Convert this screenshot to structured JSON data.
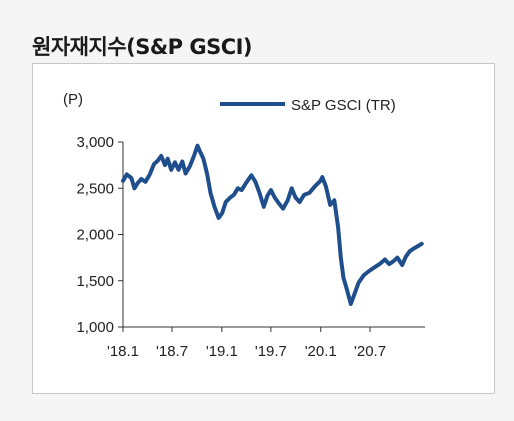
{
  "title": "원자재지수(S&P GSCI)",
  "chart_data": {
    "type": "line",
    "unit_label": "(P)",
    "series": [
      {
        "name": "S&P GSCI (TR)",
        "color": "#1f4e8c",
        "values": [
          [
            "2018-01-01",
            2580
          ],
          [
            "2018-01-15",
            2650
          ],
          [
            "2018-02-01",
            2610
          ],
          [
            "2018-02-12",
            2500
          ],
          [
            "2018-02-25",
            2560
          ],
          [
            "2018-03-10",
            2600
          ],
          [
            "2018-03-25",
            2570
          ],
          [
            "2018-04-10",
            2650
          ],
          [
            "2018-04-25",
            2760
          ],
          [
            "2018-05-10",
            2800
          ],
          [
            "2018-05-22",
            2850
          ],
          [
            "2018-06-05",
            2750
          ],
          [
            "2018-06-15",
            2820
          ],
          [
            "2018-06-28",
            2700
          ],
          [
            "2018-07-12",
            2780
          ],
          [
            "2018-07-25",
            2700
          ],
          [
            "2018-08-08",
            2790
          ],
          [
            "2018-08-20",
            2660
          ],
          [
            "2018-09-05",
            2740
          ],
          [
            "2018-09-20",
            2850
          ],
          [
            "2018-10-03",
            2960
          ],
          [
            "2018-10-12",
            2900
          ],
          [
            "2018-10-25",
            2820
          ],
          [
            "2018-11-08",
            2650
          ],
          [
            "2018-11-20",
            2450
          ],
          [
            "2018-12-05",
            2300
          ],
          [
            "2018-12-20",
            2180
          ],
          [
            "2019-01-02",
            2230
          ],
          [
            "2019-01-15",
            2350
          ],
          [
            "2019-02-01",
            2400
          ],
          [
            "2019-02-15",
            2430
          ],
          [
            "2019-03-01",
            2500
          ],
          [
            "2019-03-15",
            2480
          ],
          [
            "2019-04-01",
            2560
          ],
          [
            "2019-04-20",
            2640
          ],
          [
            "2019-05-05",
            2570
          ],
          [
            "2019-05-20",
            2450
          ],
          [
            "2019-06-05",
            2300
          ],
          [
            "2019-06-18",
            2420
          ],
          [
            "2019-07-01",
            2480
          ],
          [
            "2019-07-15",
            2400
          ],
          [
            "2019-08-01",
            2330
          ],
          [
            "2019-08-15",
            2280
          ],
          [
            "2019-09-01",
            2370
          ],
          [
            "2019-09-16",
            2500
          ],
          [
            "2019-09-30",
            2400
          ],
          [
            "2019-10-15",
            2350
          ],
          [
            "2019-11-01",
            2430
          ],
          [
            "2019-11-20",
            2450
          ],
          [
            "2019-12-10",
            2520
          ],
          [
            "2019-12-31",
            2580
          ],
          [
            "2020-01-07",
            2620
          ],
          [
            "2020-01-20",
            2520
          ],
          [
            "2020-02-05",
            2320
          ],
          [
            "2020-02-20",
            2370
          ],
          [
            "2020-03-05",
            2080
          ],
          [
            "2020-03-15",
            1750
          ],
          [
            "2020-03-25",
            1530
          ],
          [
            "2020-04-05",
            1420
          ],
          [
            "2020-04-21",
            1250
          ],
          [
            "2020-05-05",
            1360
          ],
          [
            "2020-05-20",
            1480
          ],
          [
            "2020-06-08",
            1560
          ],
          [
            "2020-06-25",
            1600
          ],
          [
            "2020-07-15",
            1640
          ],
          [
            "2020-08-05",
            1680
          ],
          [
            "2020-08-25",
            1730
          ],
          [
            "2020-09-10",
            1680
          ],
          [
            "2020-09-25",
            1710
          ],
          [
            "2020-10-10",
            1750
          ],
          [
            "2020-10-28",
            1670
          ],
          [
            "2020-11-10",
            1760
          ],
          [
            "2020-11-25",
            1820
          ],
          [
            "2020-12-10",
            1850
          ],
          [
            "2020-12-28",
            1880
          ],
          [
            "2021-01-08",
            1900
          ]
        ]
      }
    ],
    "xlim": [
      "2018-01-01",
      "2021-01-20"
    ],
    "ylim": [
      1000,
      3000
    ],
    "y_ticks": [
      1000,
      1500,
      2000,
      2500,
      3000
    ],
    "y_tick_labels": [
      "1,000",
      "1,500",
      "2,000",
      "2,500",
      "3,000"
    ],
    "x_ticks": [
      "2018-01-01",
      "2018-07-01",
      "2019-01-01",
      "2019-07-01",
      "2020-01-01",
      "2020-07-01"
    ],
    "x_tick_labels": [
      "'18.1",
      "'18.7",
      "'19.1",
      "'19.7",
      "'20.1",
      "'20.7"
    ],
    "grid": false,
    "legend_placement": "top-right"
  }
}
